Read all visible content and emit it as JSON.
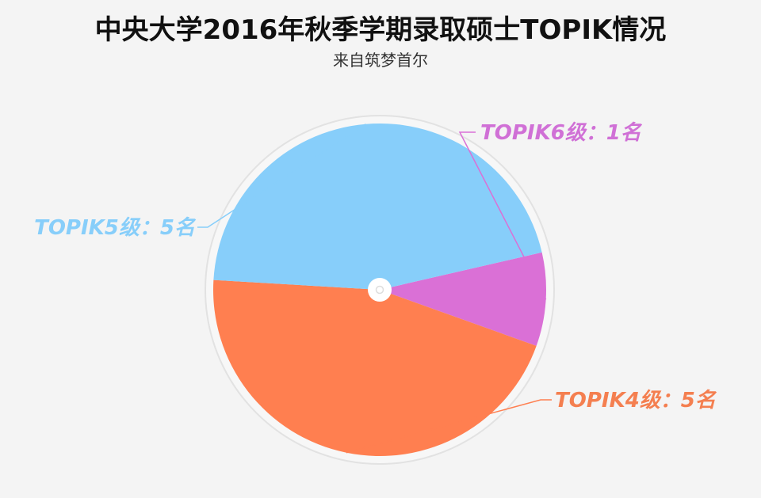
{
  "chart_data": {
    "type": "pie",
    "title": "中央大学2016年秋季学期录取硕士TOPIK情况",
    "subtitle": "来自筑梦首尔",
    "categories": [
      "TOPIK6级",
      "TOPIK4级",
      "TOPIK5级"
    ],
    "values": [
      1,
      5,
      5
    ],
    "unit": "名",
    "labels": [
      "TOPIK6级：1名",
      "TOPIK4级：5名",
      "TOPIK5级：5名"
    ],
    "colors": [
      "#da70d6",
      "#ff7f50",
      "#87cefa"
    ],
    "label_colors": [
      "#d070d6",
      "#f47f50",
      "#87cefa"
    ],
    "legend": "none"
  }
}
